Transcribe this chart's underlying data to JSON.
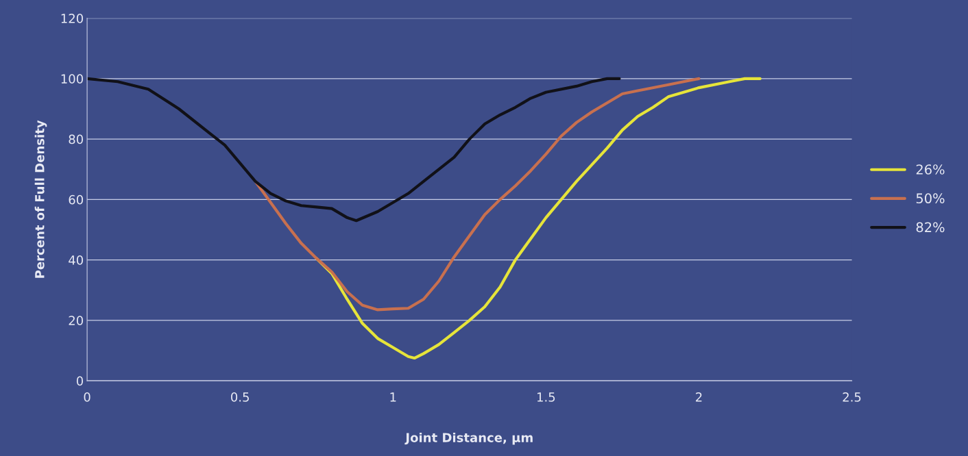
{
  "chart_data": {
    "type": "line",
    "xlabel": "Joint Distance, µm",
    "ylabel": "Percent of Full Density",
    "xlim": [
      0,
      2.5
    ],
    "xticks": [
      0,
      0.5,
      1,
      1.5,
      2,
      2.5
    ],
    "ylim": [
      0,
      120
    ],
    "yticks": [
      0,
      20,
      40,
      60,
      80,
      100,
      120
    ],
    "grid": "y",
    "legend": "right",
    "marker": "none",
    "line_style": "solid",
    "series": [
      {
        "name": "26%",
        "color": "#e6e43a",
        "x": [
          0.75,
          0.8,
          0.85,
          0.9,
          0.95,
          1.0,
          1.05,
          1.07,
          1.1,
          1.15,
          1.2,
          1.25,
          1.3,
          1.35,
          1.4,
          1.45,
          1.5,
          1.55,
          1.6,
          1.65,
          1.7,
          1.75,
          1.8,
          1.85,
          1.9,
          1.95,
          2.0,
          2.1,
          2.15,
          2.2
        ],
        "values": [
          40.5,
          35.5,
          27,
          19,
          14,
          11,
          8,
          7.5,
          9,
          12,
          16,
          20,
          24.5,
          31,
          40,
          47,
          54,
          60,
          66,
          71.5,
          77,
          83,
          87.5,
          90.5,
          94,
          95.5,
          97,
          99,
          100,
          100
        ]
      },
      {
        "name": "50%",
        "color": "#c8704f",
        "x": [
          0.55,
          0.6,
          0.65,
          0.7,
          0.75,
          0.8,
          0.85,
          0.9,
          0.95,
          1.0,
          1.05,
          1.1,
          1.15,
          1.2,
          1.25,
          1.3,
          1.35,
          1.4,
          1.45,
          1.5,
          1.55,
          1.6,
          1.65,
          1.7,
          1.75,
          1.8,
          1.9,
          1.95,
          2.0
        ],
        "values": [
          66,
          59,
          52,
          45.5,
          40.5,
          36,
          29.5,
          25,
          23.5,
          23.8,
          24,
          27,
          33,
          41,
          48,
          55,
          60,
          64.5,
          69.5,
          75,
          81,
          85.5,
          89,
          92,
          95,
          96,
          98,
          99,
          100
        ]
      },
      {
        "name": "82%",
        "color": "#111118",
        "x": [
          0,
          0.1,
          0.2,
          0.3,
          0.4,
          0.45,
          0.5,
          0.55,
          0.6,
          0.65,
          0.7,
          0.75,
          0.8,
          0.85,
          0.88,
          0.95,
          1.0,
          1.05,
          1.1,
          1.2,
          1.25,
          1.3,
          1.35,
          1.4,
          1.45,
          1.5,
          1.6,
          1.65,
          1.7,
          1.74
        ],
        "values": [
          100,
          99,
          96.5,
          90,
          82,
          78,
          72,
          66,
          62,
          59.5,
          58,
          57.5,
          57,
          54,
          53,
          56,
          59,
          62,
          66,
          74,
          80,
          85,
          88,
          90.5,
          93.5,
          95.5,
          97.5,
          99,
          100,
          100
        ]
      }
    ]
  }
}
